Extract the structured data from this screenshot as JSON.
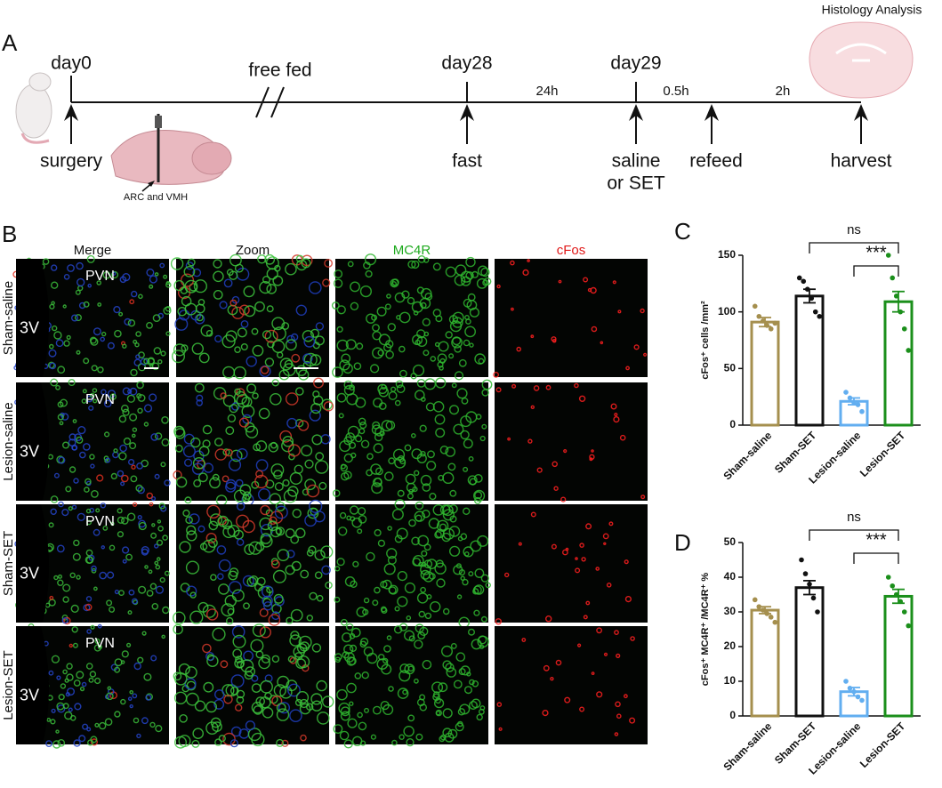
{
  "panel_labels": [
    "A",
    "B",
    "C",
    "D"
  ],
  "timeline": {
    "title": "Histology Analysis",
    "days": [
      "day0",
      "day28",
      "day29"
    ],
    "free_fed": "free fed",
    "intervals": [
      "24h",
      "0.5h",
      "2h"
    ],
    "events": [
      "surgery",
      "fast",
      [
        "saline",
        "or SET"
      ],
      "refeed",
      "harvest"
    ],
    "site": "ARC and VMH"
  },
  "microscopy": {
    "columns": [
      "Merge",
      "Zoom",
      "MC4R",
      "cFos"
    ],
    "rows": [
      "Sham-saline",
      "Lesion-saline",
      "Sham-SET",
      "Lesion-SET"
    ],
    "region": "PVN",
    "ventricle": "3V"
  },
  "chart_data": [
    {
      "type": "bar",
      "ylabel": "cFos⁺ cells /mm²",
      "categories": [
        "Sham-saline",
        "Sham-SET",
        "Lesion-saline",
        "Lesion-SET"
      ],
      "colors": [
        "#a58f4e",
        "#111111",
        "#62aef0",
        "#1b8f1b"
      ],
      "values": [
        91,
        114,
        21,
        109
      ],
      "errors": [
        4,
        6,
        3,
        9
      ],
      "points": [
        [
          105,
          96,
          92,
          88,
          85,
          90
        ],
        [
          130,
          127,
          120,
          112,
          100,
          96
        ],
        [
          29,
          24,
          20,
          18,
          12
        ],
        [
          150,
          130,
          114,
          100,
          85,
          66
        ]
      ],
      "ylim": [
        0,
        150
      ],
      "yticks": [
        0,
        50,
        100,
        150
      ],
      "annotations": [
        "ns",
        "***"
      ]
    },
    {
      "type": "bar",
      "ylabel": "cFos⁺ MC4R⁺ /MC4R⁺ %",
      "categories": [
        "Sham-saline",
        "Sham-SET",
        "Lesion-saline",
        "Lesion-SET"
      ],
      "colors": [
        "#a58f4e",
        "#111111",
        "#62aef0",
        "#1b8f1b"
      ],
      "values": [
        30.5,
        37,
        7,
        34.5
      ],
      "errors": [
        1,
        2,
        1.2,
        2
      ],
      "points": [
        [
          33.5,
          31.5,
          30.5,
          29.5,
          28.5,
          27
        ],
        [
          45,
          41,
          38,
          34,
          30
        ],
        [
          10,
          8,
          7,
          5.5,
          4.5
        ],
        [
          40,
          37.5,
          35,
          33,
          30,
          26
        ]
      ],
      "ylim": [
        0,
        50
      ],
      "yticks": [
        0,
        10,
        20,
        30,
        40,
        50
      ],
      "annotations": [
        "ns",
        "***"
      ]
    }
  ]
}
